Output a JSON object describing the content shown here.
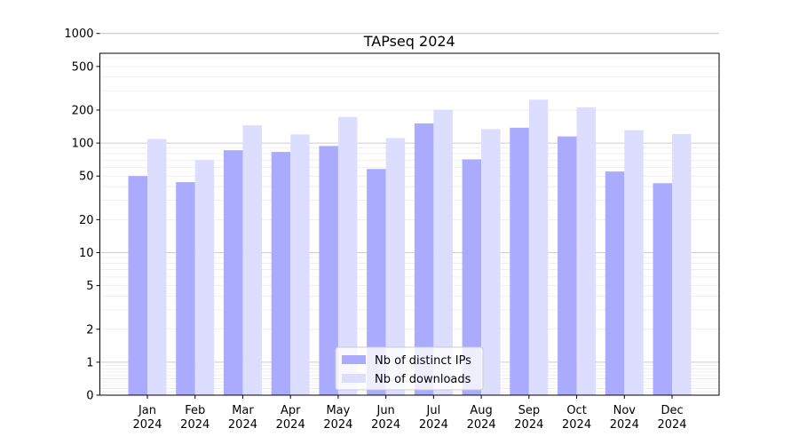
{
  "chart_data": {
    "type": "bar",
    "title": "TAPseq 2024",
    "xlabel": "",
    "ylabel": "",
    "y_scale": "symlog",
    "y_ticks": [
      0,
      1,
      2,
      5,
      10,
      20,
      50,
      100,
      200,
      500,
      1000
    ],
    "y_tick_labels": [
      "0",
      "1",
      "2",
      "5",
      "10",
      "20",
      "50",
      "100",
      "200",
      "500",
      "1000"
    ],
    "categories": [
      {
        "month": "Jan",
        "year": "2024"
      },
      {
        "month": "Feb",
        "year": "2024"
      },
      {
        "month": "Mar",
        "year": "2024"
      },
      {
        "month": "Apr",
        "year": "2024"
      },
      {
        "month": "May",
        "year": "2024"
      },
      {
        "month": "Jun",
        "year": "2024"
      },
      {
        "month": "Jul",
        "year": "2024"
      },
      {
        "month": "Aug",
        "year": "2024"
      },
      {
        "month": "Sep",
        "year": "2024"
      },
      {
        "month": "Oct",
        "year": "2024"
      },
      {
        "month": "Nov",
        "year": "2024"
      },
      {
        "month": "Dec",
        "year": "2024"
      }
    ],
    "series": [
      {
        "name": "Nb of distinct IPs",
        "color": "#aaaaff",
        "values": [
          50,
          44,
          86,
          83,
          94,
          58,
          151,
          71,
          138,
          115,
          55,
          43
        ]
      },
      {
        "name": "Nb of downloads",
        "color": "#ddddff",
        "values": [
          109,
          70,
          145,
          120,
          173,
          111,
          201,
          134,
          249,
          212,
          131,
          121
        ]
      }
    ],
    "grid": true,
    "legend_position": "bottom-center"
  }
}
